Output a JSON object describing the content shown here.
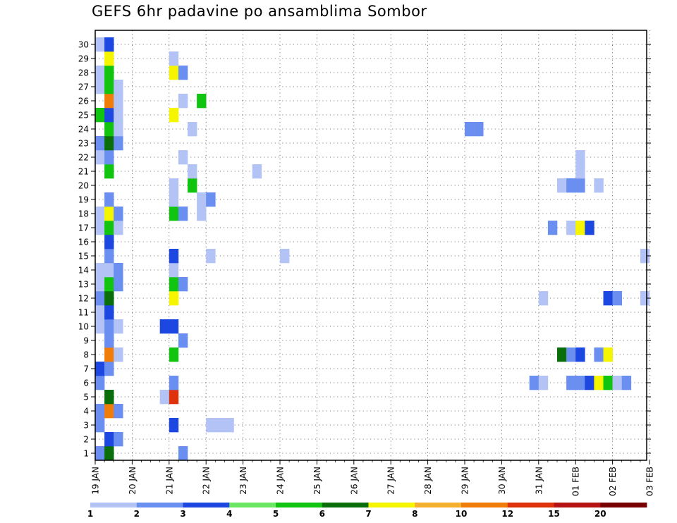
{
  "chart_data": {
    "type": "heatmap",
    "title": "GEFS 6hr padavine po ansamblima Sombor",
    "x_tick_labels": [
      "19 JAN",
      "20 JAN",
      "21 JAN",
      "22 JAN",
      "23 JAN",
      "24 JAN",
      "25 JAN",
      "26 JAN",
      "27 JAN",
      "28 JAN",
      "29 JAN",
      "30 JAN",
      "31 JAN",
      "01 FEB",
      "02 FEB",
      "03 FEB"
    ],
    "y_tick_labels": [
      "1",
      "2",
      "3",
      "4",
      "5",
      "6",
      "7",
      "8",
      "9",
      "10",
      "11",
      "12",
      "13",
      "14",
      "15",
      "16",
      "17",
      "18",
      "19",
      "20",
      "21",
      "22",
      "23",
      "24",
      "25",
      "26",
      "27",
      "28",
      "29",
      "30"
    ],
    "ylim": [
      0,
      30
    ],
    "x_steps_per_day": 4,
    "grid": true,
    "colorbar": {
      "labels": [
        "1",
        "2",
        "3",
        "4",
        "5",
        "6",
        "7",
        "8",
        "10",
        "12",
        "15",
        "20"
      ],
      "colors": [
        "#b4c3f5",
        "#6a8ff0",
        "#1c47e0",
        "#6ae862",
        "#10c410",
        "#0a6e0a",
        "#f5f500",
        "#f5b030",
        "#f07d0a",
        "#e0320a",
        "#b41414",
        "#780000"
      ]
    },
    "cells": [
      {
        "member": 0,
        "step": 0,
        "value": 2
      },
      {
        "member": 0,
        "step": 1,
        "value": 6
      },
      {
        "member": 0,
        "step": 9,
        "value": 2
      },
      {
        "member": 1,
        "step": 1,
        "value": 3
      },
      {
        "member": 1,
        "step": 2,
        "value": 2
      },
      {
        "member": 2,
        "step": 0,
        "value": 2
      },
      {
        "member": 2,
        "step": 8,
        "value": 3
      },
      {
        "member": 2,
        "step": 12,
        "value": 1
      },
      {
        "member": 2,
        "step": 13,
        "value": 1
      },
      {
        "member": 2,
        "step": 14,
        "value": 1
      },
      {
        "member": 3,
        "step": 0,
        "value": 2
      },
      {
        "member": 3,
        "step": 1,
        "value": 10
      },
      {
        "member": 3,
        "step": 2,
        "value": 2
      },
      {
        "member": 4,
        "step": 1,
        "value": 6
      },
      {
        "member": 4,
        "step": 7,
        "value": 1
      },
      {
        "member": 4,
        "step": 8,
        "value": 12
      },
      {
        "member": 5,
        "step": 0,
        "value": 2
      },
      {
        "member": 5,
        "step": 8,
        "value": 2
      },
      {
        "member": 5,
        "step": 47,
        "value": 2
      },
      {
        "member": 5,
        "step": 48,
        "value": 1
      },
      {
        "member": 5,
        "step": 51,
        "value": 2
      },
      {
        "member": 5,
        "step": 52,
        "value": 2
      },
      {
        "member": 5,
        "step": 53,
        "value": 3
      },
      {
        "member": 5,
        "step": 54,
        "value": 7
      },
      {
        "member": 5,
        "step": 55,
        "value": 5
      },
      {
        "member": 5,
        "step": 56,
        "value": 1
      },
      {
        "member": 5,
        "step": 57,
        "value": 2
      },
      {
        "member": 6,
        "step": 0,
        "value": 3
      },
      {
        "member": 6,
        "step": 1,
        "value": 2
      },
      {
        "member": 7,
        "step": 1,
        "value": 10
      },
      {
        "member": 7,
        "step": 2,
        "value": 1
      },
      {
        "member": 7,
        "step": 8,
        "value": 5
      },
      {
        "member": 7,
        "step": 50,
        "value": 6
      },
      {
        "member": 7,
        "step": 51,
        "value": 2
      },
      {
        "member": 7,
        "step": 52,
        "value": 3
      },
      {
        "member": 7,
        "step": 54,
        "value": 2
      },
      {
        "member": 7,
        "step": 55,
        "value": 7
      },
      {
        "member": 8,
        "step": 1,
        "value": 2
      },
      {
        "member": 8,
        "step": 9,
        "value": 2
      },
      {
        "member": 9,
        "step": 0,
        "value": 1
      },
      {
        "member": 9,
        "step": 1,
        "value": 2
      },
      {
        "member": 9,
        "step": 2,
        "value": 1
      },
      {
        "member": 9,
        "step": 7,
        "value": 3
      },
      {
        "member": 9,
        "step": 8,
        "value": 3
      },
      {
        "member": 10,
        "step": 0,
        "value": 1
      },
      {
        "member": 10,
        "step": 1,
        "value": 3
      },
      {
        "member": 11,
        "step": 0,
        "value": 2
      },
      {
        "member": 11,
        "step": 1,
        "value": 6
      },
      {
        "member": 11,
        "step": 8,
        "value": 7
      },
      {
        "member": 11,
        "step": 48,
        "value": 1
      },
      {
        "member": 11,
        "step": 55,
        "value": 3
      },
      {
        "member": 11,
        "step": 56,
        "value": 2
      },
      {
        "member": 11,
        "step": 59,
        "value": 1
      },
      {
        "member": 12,
        "step": 0,
        "value": 1
      },
      {
        "member": 12,
        "step": 1,
        "value": 5
      },
      {
        "member": 12,
        "step": 2,
        "value": 2
      },
      {
        "member": 12,
        "step": 8,
        "value": 5
      },
      {
        "member": 12,
        "step": 9,
        "value": 2
      },
      {
        "member": 13,
        "step": 0,
        "value": 1
      },
      {
        "member": 13,
        "step": 1,
        "value": 1
      },
      {
        "member": 13,
        "step": 2,
        "value": 2
      },
      {
        "member": 13,
        "step": 8,
        "value": 1
      },
      {
        "member": 14,
        "step": 1,
        "value": 2
      },
      {
        "member": 14,
        "step": 8,
        "value": 3
      },
      {
        "member": 14,
        "step": 12,
        "value": 1
      },
      {
        "member": 14,
        "step": 20,
        "value": 1
      },
      {
        "member": 14,
        "step": 59,
        "value": 1
      },
      {
        "member": 15,
        "step": 1,
        "value": 3
      },
      {
        "member": 16,
        "step": 0,
        "value": 1
      },
      {
        "member": 16,
        "step": 1,
        "value": 5
      },
      {
        "member": 16,
        "step": 2,
        "value": 1
      },
      {
        "member": 16,
        "step": 49,
        "value": 2
      },
      {
        "member": 16,
        "step": 51,
        "value": 1
      },
      {
        "member": 16,
        "step": 52,
        "value": 7
      },
      {
        "member": 16,
        "step": 53,
        "value": 3
      },
      {
        "member": 17,
        "step": 0,
        "value": 1
      },
      {
        "member": 17,
        "step": 1,
        "value": 7
      },
      {
        "member": 17,
        "step": 2,
        "value": 2
      },
      {
        "member": 17,
        "step": 8,
        "value": 5
      },
      {
        "member": 17,
        "step": 9,
        "value": 2
      },
      {
        "member": 17,
        "step": 11,
        "value": 1
      },
      {
        "member": 18,
        "step": 1,
        "value": 2
      },
      {
        "member": 18,
        "step": 8,
        "value": 1
      },
      {
        "member": 18,
        "step": 11,
        "value": 1
      },
      {
        "member": 18,
        "step": 12,
        "value": 2
      },
      {
        "member": 19,
        "step": 8,
        "value": 1
      },
      {
        "member": 19,
        "step": 10,
        "value": 5
      },
      {
        "member": 19,
        "step": 50,
        "value": 1
      },
      {
        "member": 19,
        "step": 51,
        "value": 2
      },
      {
        "member": 19,
        "step": 52,
        "value": 2
      },
      {
        "member": 19,
        "step": 54,
        "value": 1
      },
      {
        "member": 20,
        "step": 1,
        "value": 5
      },
      {
        "member": 20,
        "step": 10,
        "value": 1
      },
      {
        "member": 20,
        "step": 17,
        "value": 1
      },
      {
        "member": 20,
        "step": 52,
        "value": 1
      },
      {
        "member": 21,
        "step": 0,
        "value": 1
      },
      {
        "member": 21,
        "step": 1,
        "value": 2
      },
      {
        "member": 21,
        "step": 9,
        "value": 1
      },
      {
        "member": 21,
        "step": 52,
        "value": 1
      },
      {
        "member": 22,
        "step": 0,
        "value": 2
      },
      {
        "member": 22,
        "step": 1,
        "value": 6
      },
      {
        "member": 22,
        "step": 2,
        "value": 2
      },
      {
        "member": 23,
        "step": 1,
        "value": 5
      },
      {
        "member": 23,
        "step": 2,
        "value": 1
      },
      {
        "member": 23,
        "step": 10,
        "value": 1
      },
      {
        "member": 23,
        "step": 40,
        "value": 2
      },
      {
        "member": 23,
        "step": 41,
        "value": 2
      },
      {
        "member": 24,
        "step": 0,
        "value": 5
      },
      {
        "member": 24,
        "step": 1,
        "value": 3
      },
      {
        "member": 24,
        "step": 2,
        "value": 1
      },
      {
        "member": 24,
        "step": 8,
        "value": 7
      },
      {
        "member": 25,
        "step": 1,
        "value": 10
      },
      {
        "member": 25,
        "step": 2,
        "value": 1
      },
      {
        "member": 25,
        "step": 9,
        "value": 1
      },
      {
        "member": 25,
        "step": 11,
        "value": 5
      },
      {
        "member": 26,
        "step": 0,
        "value": 1
      },
      {
        "member": 26,
        "step": 1,
        "value": 5
      },
      {
        "member": 26,
        "step": 2,
        "value": 1
      },
      {
        "member": 27,
        "step": 0,
        "value": 1
      },
      {
        "member": 27,
        "step": 1,
        "value": 5
      },
      {
        "member": 27,
        "step": 8,
        "value": 7
      },
      {
        "member": 27,
        "step": 9,
        "value": 2
      },
      {
        "member": 28,
        "step": 1,
        "value": 7
      },
      {
        "member": 28,
        "step": 8,
        "value": 1
      },
      {
        "member": 29,
        "step": 0,
        "value": 1
      },
      {
        "member": 29,
        "step": 1,
        "value": 3
      }
    ]
  }
}
